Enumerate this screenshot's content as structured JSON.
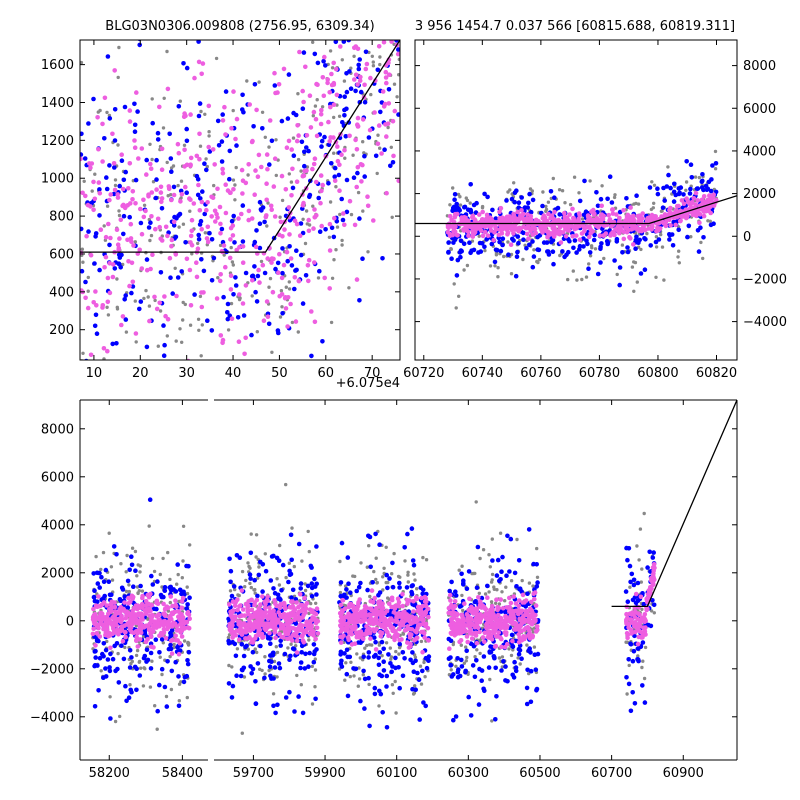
{
  "colors": {
    "grey": "#888888",
    "blue": "#0000ff",
    "magenta": "#ee5ee0",
    "model": "#000000"
  },
  "chart_data": [
    {
      "id": "panel-zoom",
      "type": "scatter",
      "title": "BLG03N0306.009808 (2756.95, 6309.34)",
      "xlim": [
        7,
        76
      ],
      "ylim": [
        40,
        1730
      ],
      "x_offset_label": "+6.075e4",
      "xticks": [
        10,
        20,
        30,
        40,
        50,
        60,
        70
      ],
      "yticks": [
        200,
        400,
        600,
        800,
        1000,
        1200,
        1400,
        1600
      ],
      "model_line": {
        "x": [
          7,
          47,
          76
        ],
        "y": [
          610,
          610,
          1730
        ]
      },
      "series": [
        {
          "name": "grey",
          "x_range": [
            7,
            76
          ],
          "y_range": [
            40,
            1730
          ],
          "y_center": 720,
          "y_spread": 420,
          "count": 320
        },
        {
          "name": "blue",
          "x_range": [
            7,
            76
          ],
          "y_range": [
            40,
            1730
          ],
          "y_center": 700,
          "y_spread": 430,
          "count": 380
        },
        {
          "name": "magenta",
          "x_range": [
            7,
            76
          ],
          "y_range": [
            40,
            1730
          ],
          "y_center": 760,
          "y_spread": 380,
          "count": 520
        }
      ]
    },
    {
      "id": "panel-season",
      "type": "scatter",
      "title": "3 956 1454.7 0.037 566 [60815.688, 60819.311]",
      "xlim": [
        60717,
        60827
      ],
      "ylim": [
        -5800,
        9200
      ],
      "xticks": [
        60720,
        60740,
        60760,
        60780,
        60800,
        60820
      ],
      "yticks": [
        -4000,
        -2000,
        0,
        2000,
        4000,
        6000,
        8000
      ],
      "model_line": {
        "x": [
          60717,
          60797,
          60827
        ],
        "y": [
          600,
          600,
          1900
        ]
      },
      "series": [
        {
          "name": "grey",
          "x_range": [
            60728,
            60820
          ],
          "y_center": 300,
          "y_spread": 1100,
          "count": 260
        },
        {
          "name": "blue",
          "x_range": [
            60728,
            60820
          ],
          "y_center": 350,
          "y_spread": 900,
          "count": 420
        },
        {
          "name": "magenta",
          "x_range": [
            60728,
            60820
          ],
          "y_center": 550,
          "y_spread": 280,
          "count": 700
        }
      ]
    },
    {
      "id": "panel-full",
      "type": "scatter",
      "title": "",
      "ylim": [
        -5800,
        9200
      ],
      "yticks": [
        -4000,
        -2000,
        0,
        2000,
        4000,
        6000,
        8000
      ],
      "segments": [
        {
          "xlim": [
            58120,
            58470
          ],
          "xticks": [
            58200,
            58400
          ],
          "data_x": [
            58155,
            58420
          ]
        },
        {
          "xlim": [
            59590,
            61050
          ],
          "xticks": [
            59700,
            59900,
            60100,
            60300,
            60500,
            60700,
            60900
          ],
          "data_x": [
            [
              59630,
              59880
            ],
            [
              59940,
              60190
            ],
            [
              60245,
              60495
            ],
            [
              60740,
              60820
            ]
          ],
          "model_line": {
            "x": [
              60700,
              60800,
              61050
            ],
            "y": [
              600,
              600,
              9200
            ]
          }
        }
      ],
      "series": [
        {
          "name": "grey",
          "y_center": 0,
          "y_spread": 1500,
          "count": 900
        },
        {
          "name": "blue",
          "y_center": -300,
          "y_spread": 1500,
          "count": 1100
        },
        {
          "name": "magenta",
          "y_center": 0,
          "y_spread": 450,
          "count": 1700
        }
      ]
    }
  ]
}
